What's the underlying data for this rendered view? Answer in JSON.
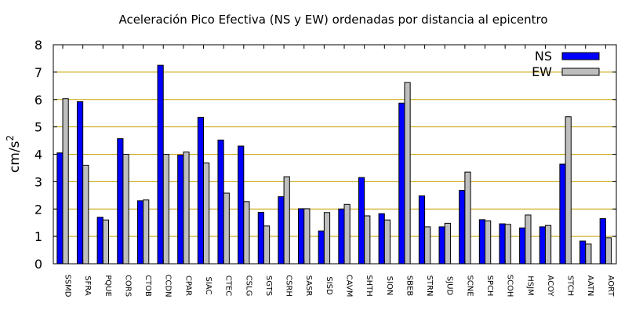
{
  "chart_data": {
    "type": "bar",
    "title": "Aceleración Pico Efectiva (NS y EW) ordenadas por distancia al epicentro",
    "ylabel_base": "cm/s",
    "ylabel_exp": "2",
    "xlabel": "",
    "ylim": [
      0,
      8
    ],
    "yticks": [
      0,
      1,
      2,
      3,
      4,
      5,
      6,
      7,
      8
    ],
    "grid": "horizontal",
    "legend_position": "top-right",
    "categories": [
      "SSMD",
      "SFRA",
      "PQUE",
      "CORS",
      "CTOB",
      "CCDN",
      "CPAR",
      "SIAC",
      "CTEC",
      "CSLG",
      "SGTS",
      "CSRH",
      "SASR",
      "SISD",
      "CAVM",
      "SHTH",
      "SION",
      "SBEB",
      "STRN",
      "SJUD",
      "SCNE",
      "SPCH",
      "SCOH",
      "HSJM",
      "ACOY",
      "STCH",
      "AATN",
      "AORT"
    ],
    "series": [
      {
        "name": "NS",
        "color": "#0000ff",
        "values": [
          4.05,
          5.92,
          1.7,
          4.57,
          2.3,
          7.25,
          3.97,
          5.35,
          4.52,
          4.3,
          1.88,
          2.45,
          2.01,
          1.2,
          2.0,
          3.15,
          1.83,
          5.87,
          2.48,
          1.35,
          2.68,
          1.61,
          1.46,
          1.31,
          1.35,
          3.64,
          0.83,
          1.65
        ]
      },
      {
        "name": "EW",
        "color": "#bebebe",
        "values": [
          6.03,
          3.6,
          1.6,
          4.0,
          2.33,
          4.0,
          4.08,
          3.68,
          2.58,
          2.27,
          1.38,
          3.18,
          2.01,
          1.87,
          2.17,
          1.75,
          1.6,
          6.62,
          1.35,
          1.48,
          3.35,
          1.57,
          1.44,
          1.78,
          1.4,
          5.37,
          0.72,
          0.95
        ]
      }
    ]
  }
}
